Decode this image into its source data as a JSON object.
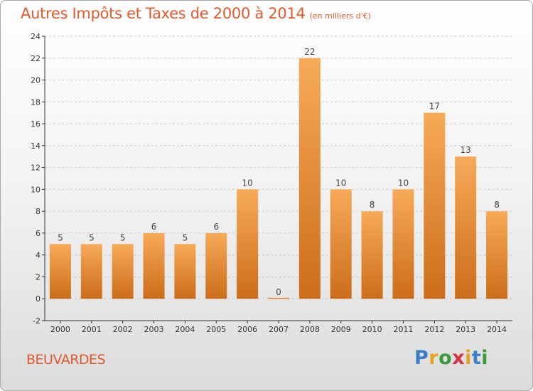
{
  "title": "Autres Impôts et Taxes de 2000 à 2014",
  "subtitle": "(en milliers d'€)",
  "place": "BEUVARDES",
  "brand": {
    "text": "Proxiti",
    "letter_colors": [
      "#3a7fc4",
      "#e8a020",
      "#3a9a3a",
      "#d83040",
      "#e8a020",
      "#3a7fc4",
      "#3a9a3a"
    ]
  },
  "colors": {
    "title": "#e05a30",
    "bar_light": "#f7aa58",
    "bar_dark": "#cc6d1a",
    "axis": "#333333",
    "grid": "#c8c8c8"
  },
  "chart_data": {
    "type": "bar",
    "title": "Autres Impôts et Taxes de 2000 à 2014",
    "subtitle": "(en milliers d'€)",
    "categories": [
      "2000",
      "2001",
      "2002",
      "2003",
      "2004",
      "2005",
      "2006",
      "2007",
      "2008",
      "2009",
      "2010",
      "2011",
      "2012",
      "2013",
      "2014"
    ],
    "values": [
      5,
      5,
      5,
      6,
      5,
      6,
      10,
      0,
      22,
      10,
      8,
      10,
      17,
      13,
      8
    ],
    "data_labels": [
      "5",
      "5",
      "5",
      "6",
      "5",
      "6",
      "10",
      "0",
      "22",
      "10",
      "8",
      "10",
      "17",
      "13",
      "8"
    ],
    "ylim": [
      -2,
      24
    ],
    "yticks": [
      -2,
      0,
      2,
      4,
      6,
      8,
      10,
      12,
      14,
      16,
      18,
      20,
      22,
      24
    ],
    "ytick_labels": [
      "-2",
      "0",
      "2",
      "4",
      "6",
      "8",
      "10",
      "12",
      "14",
      "16",
      "18",
      "20",
      "22",
      "24"
    ],
    "grid": "horizontal dashed",
    "legend": "none"
  }
}
